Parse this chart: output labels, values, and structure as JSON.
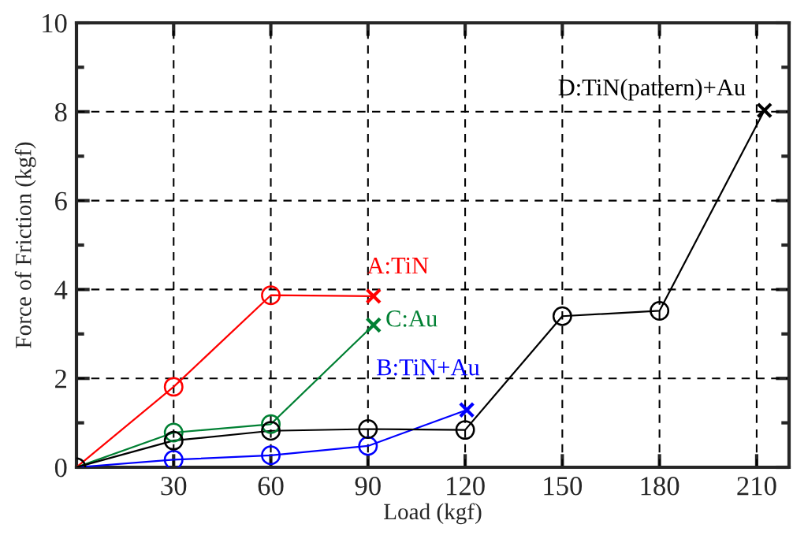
{
  "chart_data": {
    "type": "line",
    "xlabel": "Load (kgf)",
    "ylabel": "Force of Friction (kgf)",
    "xlim": [
      0,
      220
    ],
    "xticks": [
      30,
      60,
      90,
      120,
      150,
      180,
      210
    ],
    "ylim": [
      0,
      10
    ],
    "yticks": [
      0,
      {
        "value": 1,
        "label": null
      },
      2,
      {
        "value": 3,
        "label": null
      },
      4,
      {
        "value": 5,
        "label": null
      },
      6,
      {
        "value": 7,
        "label": null
      },
      8,
      {
        "value": 9,
        "label": null
      },
      10
    ],
    "grid": true,
    "legend": false,
    "series": [
      {
        "name": "A:TiN",
        "color": "#ff0000",
        "marker": "none",
        "x": [
          0,
          30,
          60,
          91.7
        ],
        "values": [
          0,
          1.81,
          3.87,
          3.85
        ]
      },
      {
        "type": "scatter",
        "color": "#ff0000",
        "marker": "circle",
        "x": [
          30,
          60
        ],
        "values": [
          1.81,
          3.87
        ]
      },
      {
        "type": "scatter",
        "color": "#ff0000",
        "marker": "cross",
        "x": [
          91.7
        ],
        "values": [
          3.85
        ]
      },
      {
        "name": "C:Au",
        "color": "#008033",
        "marker": "none",
        "x": [
          0,
          30,
          60,
          91.7
        ],
        "values": [
          0,
          0.78,
          0.97,
          3.2
        ]
      },
      {
        "type": "scatter",
        "color": "#008033",
        "marker": "circle",
        "x": [
          30,
          60
        ],
        "values": [
          0.78,
          0.97
        ]
      },
      {
        "type": "scatter",
        "color": "#008033",
        "marker": "cross",
        "x": [
          91.7
        ],
        "values": [
          3.2
        ]
      },
      {
        "name": "B:TiN+Au",
        "color": "#0000ff",
        "marker": "none",
        "x": [
          0,
          30,
          60,
          90,
          120.5
        ],
        "values": [
          0,
          0.17,
          0.27,
          0.48,
          1.29
        ]
      },
      {
        "type": "scatter",
        "color": "#0000ff",
        "marker": "circle",
        "x": [
          30,
          60,
          90
        ],
        "values": [
          0.17,
          0.27,
          0.48
        ]
      },
      {
        "type": "scatter",
        "color": "#0000ff",
        "marker": "cross",
        "x": [
          120.5
        ],
        "values": [
          1.29
        ]
      },
      {
        "name": "D:TiN(pattern)+Au",
        "color": "#000000",
        "marker": "none",
        "x": [
          0,
          30,
          60,
          90,
          120,
          150,
          180,
          212.4
        ],
        "values": [
          0,
          0.6,
          0.82,
          0.86,
          0.84,
          3.4,
          3.52,
          8.03
        ]
      },
      {
        "type": "scatter",
        "color": "#000000",
        "marker": "circle",
        "x": [
          0,
          30,
          60,
          90,
          120,
          150,
          180
        ],
        "values": [
          0,
          0.6,
          0.82,
          0.86,
          0.84,
          3.4,
          3.52
        ]
      },
      {
        "type": "scatter",
        "color": "#000000",
        "marker": "cross",
        "x": [
          212.4
        ],
        "values": [
          8.03
        ]
      }
    ]
  }
}
